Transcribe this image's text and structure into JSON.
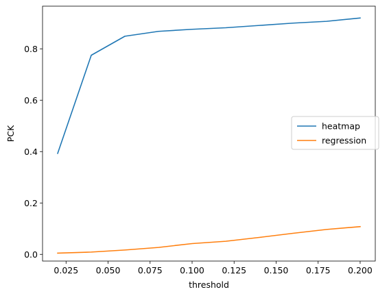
{
  "chart_data": {
    "type": "line",
    "xlabel": "threshold",
    "ylabel": "PCK",
    "xlim": [
      0.011,
      0.209
    ],
    "ylim": [
      -0.026,
      0.966
    ],
    "x_ticks": [
      0.025,
      0.05,
      0.075,
      0.1,
      0.125,
      0.15,
      0.175,
      0.2
    ],
    "x_tick_labels": [
      "0.025",
      "0.050",
      "0.075",
      "0.100",
      "0.125",
      "0.150",
      "0.175",
      "0.200"
    ],
    "y_ticks": [
      0.0,
      0.2,
      0.4,
      0.6,
      0.8
    ],
    "y_tick_labels": [
      "0.0",
      "0.2",
      "0.4",
      "0.6",
      "0.8"
    ],
    "grid": false,
    "legend_position": "center-right",
    "x": [
      0.02,
      0.04,
      0.06,
      0.08,
      0.1,
      0.12,
      0.14,
      0.16,
      0.18,
      0.2
    ],
    "series": [
      {
        "name": "heatmap",
        "color": "#1f77b4",
        "values": [
          0.393,
          0.775,
          0.849,
          0.868,
          0.876,
          0.882,
          0.891,
          0.9,
          0.907,
          0.92
        ]
      },
      {
        "name": "regression",
        "color": "#ff7f0e",
        "values": [
          0.005,
          0.009,
          0.017,
          0.027,
          0.042,
          0.051,
          0.066,
          0.082,
          0.097,
          0.108
        ]
      }
    ]
  }
}
